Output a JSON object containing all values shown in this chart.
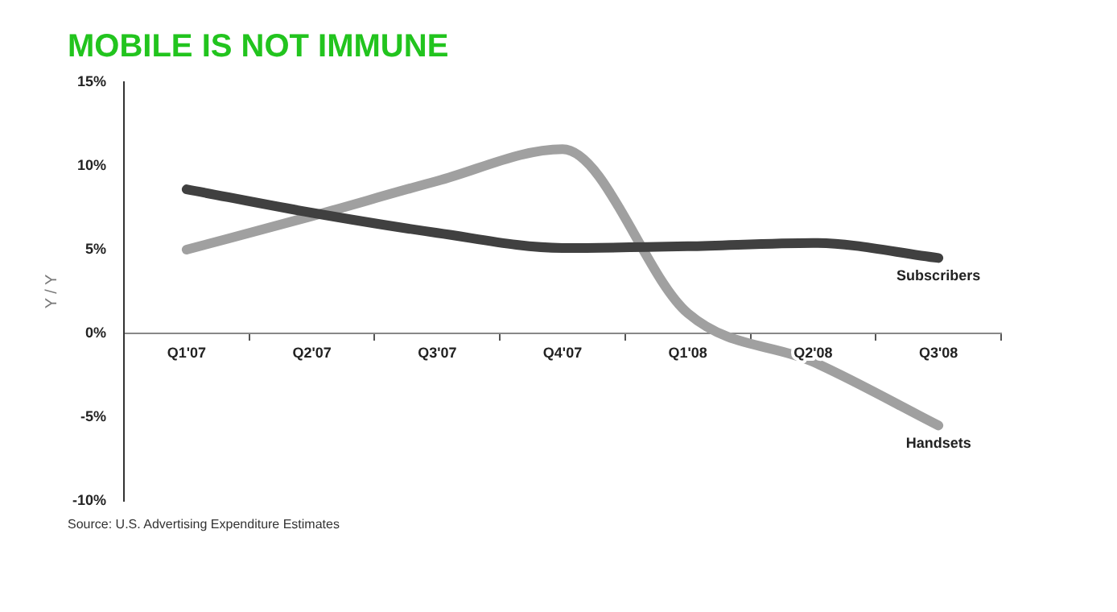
{
  "chart_data": {
    "type": "line",
    "title": "MOBILE IS NOT IMMUNE",
    "ylabel": "Y / Y",
    "categories": [
      "Q1'07",
      "Q2'07",
      "Q3'07",
      "Q4'07",
      "Q1'08",
      "Q2'08",
      "Q3'08"
    ],
    "series": [
      {
        "name": "Subscribers",
        "color": "#404040",
        "values": [
          8.6,
          7.2,
          6.0,
          5.1,
          5.2,
          5.4,
          4.5
        ]
      },
      {
        "name": "Handsets",
        "color": "#a0a0a0",
        "values": [
          5.0,
          7.0,
          9.1,
          11.0,
          1.2,
          -1.7,
          -5.5
        ]
      }
    ],
    "ylim": [
      -10,
      15
    ],
    "yticks": [
      {
        "value": -10,
        "label": "-10%"
      },
      {
        "value": -5,
        "label": "-5%"
      },
      {
        "value": 0,
        "label": "0%"
      },
      {
        "value": 5,
        "label": "5%"
      },
      {
        "value": 10,
        "label": "10%"
      },
      {
        "value": 15,
        "label": "15%"
      }
    ],
    "grid": false,
    "legend": false,
    "marker": "none",
    "line_style": "solid",
    "annotations": [
      "Source: U.S. Advertising Expenditure Estimates"
    ]
  }
}
